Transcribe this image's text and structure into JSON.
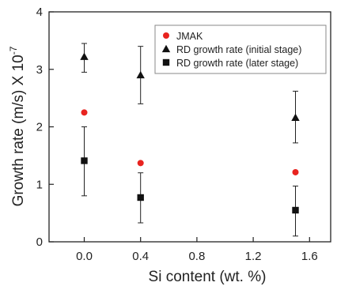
{
  "chart_data": {
    "type": "scatter",
    "title": "",
    "xlabel": "Si content (wt. %)",
    "ylabel_text": "Growth rate (m/s) X 10",
    "ylabel_exponent": "-7",
    "xlim": [
      -0.25,
      1.75
    ],
    "ylim": [
      0,
      4
    ],
    "xticks": [
      0.0,
      0.4,
      0.8,
      1.2,
      1.6
    ],
    "xtick_labels": [
      "0.0",
      "0.4",
      "0.8",
      "1.2",
      "1.6"
    ],
    "yticks": [
      0,
      1,
      2,
      3,
      4
    ],
    "ytick_labels": [
      "0",
      "1",
      "2",
      "3",
      "4"
    ],
    "grid": false,
    "legend_position": "top-right",
    "series": [
      {
        "name": "JMAK",
        "marker": "circle",
        "color": "#e8231f",
        "x": [
          0.0,
          0.4,
          1.5
        ],
        "y": [
          2.25,
          1.37,
          1.21
        ],
        "yerr_low": null,
        "yerr_high": null
      },
      {
        "name": "RD growth rate (initial stage)",
        "marker": "triangle",
        "color": "#111111",
        "x": [
          0.0,
          0.4,
          1.5
        ],
        "y": [
          3.22,
          2.9,
          2.16
        ],
        "yerr_low": [
          2.95,
          2.4,
          1.72
        ],
        "yerr_high": [
          3.45,
          3.4,
          2.62
        ]
      },
      {
        "name": "RD growth rate (later stage)",
        "marker": "square",
        "color": "#111111",
        "x": [
          0.0,
          0.4,
          1.5
        ],
        "y": [
          1.41,
          0.77,
          0.55
        ],
        "yerr_low": [
          0.8,
          0.33,
          0.1
        ],
        "yerr_high": [
          2.0,
          1.2,
          0.97
        ]
      }
    ]
  }
}
